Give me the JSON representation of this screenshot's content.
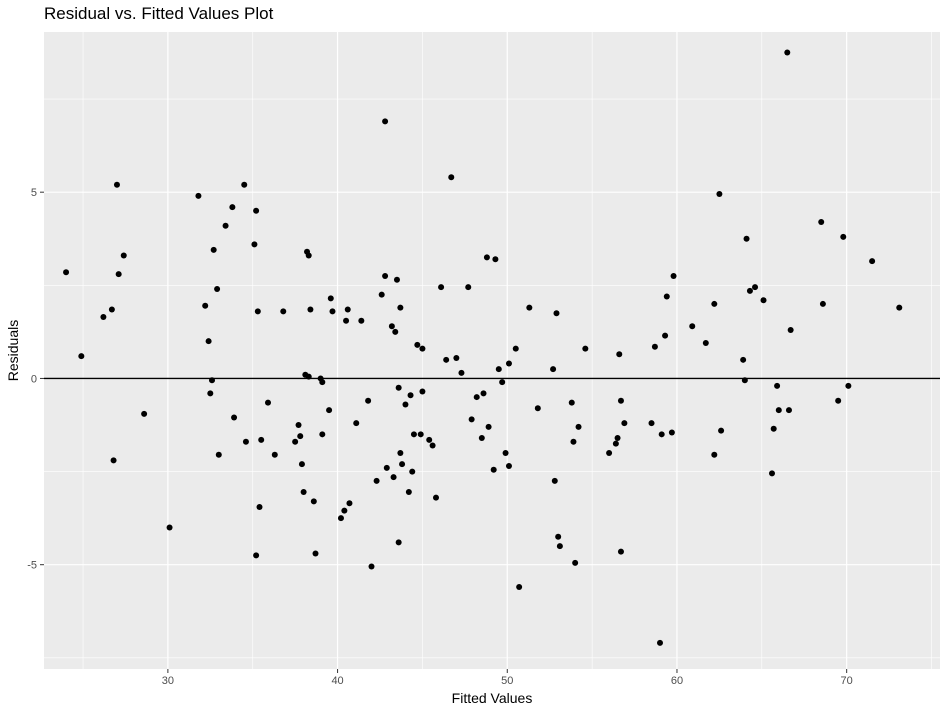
{
  "chart_data": {
    "type": "scatter",
    "title": "Residual vs. Fitted Values Plot",
    "xlabel": "Fitted Values",
    "ylabel": "Residuals",
    "xlim": [
      22.7,
      75.5
    ],
    "ylim": [
      -7.8,
      9.3
    ],
    "x_ticks": [
      30,
      40,
      50,
      60,
      70
    ],
    "y_ticks": [
      -5,
      0,
      5
    ],
    "grid": true,
    "reference_line": {
      "y": 0,
      "color": "#000000"
    },
    "colors": {
      "panel": "#ebebeb",
      "grid": "#ffffff",
      "point": "#000000"
    },
    "points": [
      [
        24.0,
        2.85
      ],
      [
        24.9,
        0.6
      ],
      [
        26.2,
        1.65
      ],
      [
        26.7,
        1.85
      ],
      [
        26.8,
        -2.2
      ],
      [
        27.0,
        5.2
      ],
      [
        27.1,
        2.8
      ],
      [
        27.4,
        3.3
      ],
      [
        28.6,
        -0.95
      ],
      [
        30.1,
        -4.0
      ],
      [
        31.8,
        4.9
      ],
      [
        32.2,
        1.95
      ],
      [
        32.4,
        1.0
      ],
      [
        32.5,
        -0.4
      ],
      [
        32.6,
        -0.05
      ],
      [
        32.7,
        3.45
      ],
      [
        32.9,
        2.4
      ],
      [
        33.0,
        -2.05
      ],
      [
        33.4,
        4.1
      ],
      [
        33.8,
        4.6
      ],
      [
        33.9,
        -1.05
      ],
      [
        34.5,
        5.2
      ],
      [
        34.6,
        -1.7
      ],
      [
        35.1,
        3.6
      ],
      [
        35.2,
        4.5
      ],
      [
        35.2,
        -4.75
      ],
      [
        35.3,
        1.8
      ],
      [
        35.4,
        -3.45
      ],
      [
        35.5,
        -1.65
      ],
      [
        35.9,
        -0.65
      ],
      [
        36.3,
        -2.05
      ],
      [
        36.8,
        1.8
      ],
      [
        37.5,
        -1.7
      ],
      [
        37.7,
        -1.25
      ],
      [
        37.8,
        -1.55
      ],
      [
        37.9,
        -2.3
      ],
      [
        38.0,
        -3.05
      ],
      [
        38.1,
        0.1
      ],
      [
        38.2,
        3.4
      ],
      [
        38.3,
        3.3
      ],
      [
        38.3,
        0.05
      ],
      [
        38.4,
        1.85
      ],
      [
        38.6,
        -3.3
      ],
      [
        38.7,
        -4.7
      ],
      [
        39.0,
        0.0
      ],
      [
        39.1,
        -0.1
      ],
      [
        39.1,
        -1.5
      ],
      [
        39.5,
        -0.85
      ],
      [
        39.6,
        2.15
      ],
      [
        39.7,
        1.8
      ],
      [
        40.2,
        -3.75
      ],
      [
        40.4,
        -3.55
      ],
      [
        40.5,
        1.55
      ],
      [
        40.6,
        1.85
      ],
      [
        40.7,
        -3.35
      ],
      [
        41.1,
        -1.2
      ],
      [
        41.4,
        1.55
      ],
      [
        41.8,
        -0.6
      ],
      [
        42.0,
        -5.05
      ],
      [
        42.3,
        -2.75
      ],
      [
        42.6,
        2.25
      ],
      [
        42.8,
        6.9
      ],
      [
        42.8,
        2.75
      ],
      [
        42.9,
        -2.4
      ],
      [
        43.2,
        1.4
      ],
      [
        43.3,
        -2.65
      ],
      [
        43.4,
        1.25
      ],
      [
        43.5,
        2.65
      ],
      [
        43.6,
        -4.4
      ],
      [
        43.6,
        -0.25
      ],
      [
        43.7,
        1.9
      ],
      [
        43.7,
        -2.0
      ],
      [
        43.8,
        -2.3
      ],
      [
        44.0,
        -0.7
      ],
      [
        44.2,
        -3.05
      ],
      [
        44.3,
        -0.45
      ],
      [
        44.4,
        -2.5
      ],
      [
        44.5,
        -1.5
      ],
      [
        44.7,
        0.9
      ],
      [
        44.9,
        -1.5
      ],
      [
        45.0,
        -0.35
      ],
      [
        45.0,
        0.8
      ],
      [
        45.4,
        -1.65
      ],
      [
        45.6,
        -1.8
      ],
      [
        45.8,
        -3.2
      ],
      [
        46.1,
        2.45
      ],
      [
        46.4,
        0.5
      ],
      [
        46.7,
        5.4
      ],
      [
        47.0,
        0.55
      ],
      [
        47.3,
        0.15
      ],
      [
        47.7,
        2.45
      ],
      [
        47.9,
        -1.1
      ],
      [
        48.2,
        -0.5
      ],
      [
        48.5,
        -1.6
      ],
      [
        48.6,
        -0.4
      ],
      [
        48.8,
        3.25
      ],
      [
        48.9,
        -1.3
      ],
      [
        49.2,
        -2.45
      ],
      [
        49.3,
        3.2
      ],
      [
        49.5,
        0.25
      ],
      [
        49.7,
        -0.1
      ],
      [
        49.9,
        -2.0
      ],
      [
        50.1,
        -2.35
      ],
      [
        50.1,
        0.4
      ],
      [
        50.5,
        0.8
      ],
      [
        50.7,
        -5.6
      ],
      [
        51.3,
        1.9
      ],
      [
        51.8,
        -0.8
      ],
      [
        52.7,
        0.25
      ],
      [
        52.8,
        -2.75
      ],
      [
        52.9,
        1.75
      ],
      [
        53.0,
        -4.25
      ],
      [
        53.1,
        -4.5
      ],
      [
        53.8,
        -0.65
      ],
      [
        53.9,
        -1.7
      ],
      [
        54.0,
        -4.95
      ],
      [
        54.2,
        -1.3
      ],
      [
        54.6,
        0.8
      ],
      [
        56.0,
        -2.0
      ],
      [
        56.4,
        -1.75
      ],
      [
        56.5,
        -1.6
      ],
      [
        56.6,
        0.65
      ],
      [
        56.7,
        -0.6
      ],
      [
        56.7,
        -4.65
      ],
      [
        56.9,
        -1.2
      ],
      [
        58.5,
        -1.2
      ],
      [
        58.7,
        0.85
      ],
      [
        59.0,
        -7.1
      ],
      [
        59.1,
        -1.5
      ],
      [
        59.3,
        1.15
      ],
      [
        59.4,
        2.2
      ],
      [
        59.7,
        -1.45
      ],
      [
        59.8,
        2.75
      ],
      [
        60.9,
        1.4
      ],
      [
        61.7,
        0.95
      ],
      [
        62.2,
        2.0
      ],
      [
        62.2,
        -2.05
      ],
      [
        62.5,
        4.95
      ],
      [
        62.6,
        -1.4
      ],
      [
        63.9,
        0.5
      ],
      [
        64.0,
        -0.05
      ],
      [
        64.1,
        3.75
      ],
      [
        64.3,
        2.35
      ],
      [
        64.6,
        2.45
      ],
      [
        65.1,
        2.1
      ],
      [
        65.6,
        -2.55
      ],
      [
        65.7,
        -1.35
      ],
      [
        65.9,
        -0.2
      ],
      [
        66.0,
        -0.85
      ],
      [
        66.5,
        8.75
      ],
      [
        66.6,
        -0.85
      ],
      [
        66.7,
        1.3
      ],
      [
        68.5,
        4.2
      ],
      [
        68.6,
        2.0
      ],
      [
        69.5,
        -0.6
      ],
      [
        69.8,
        3.8
      ],
      [
        70.1,
        -0.2
      ],
      [
        71.5,
        3.15
      ],
      [
        73.1,
        1.9
      ]
    ]
  }
}
